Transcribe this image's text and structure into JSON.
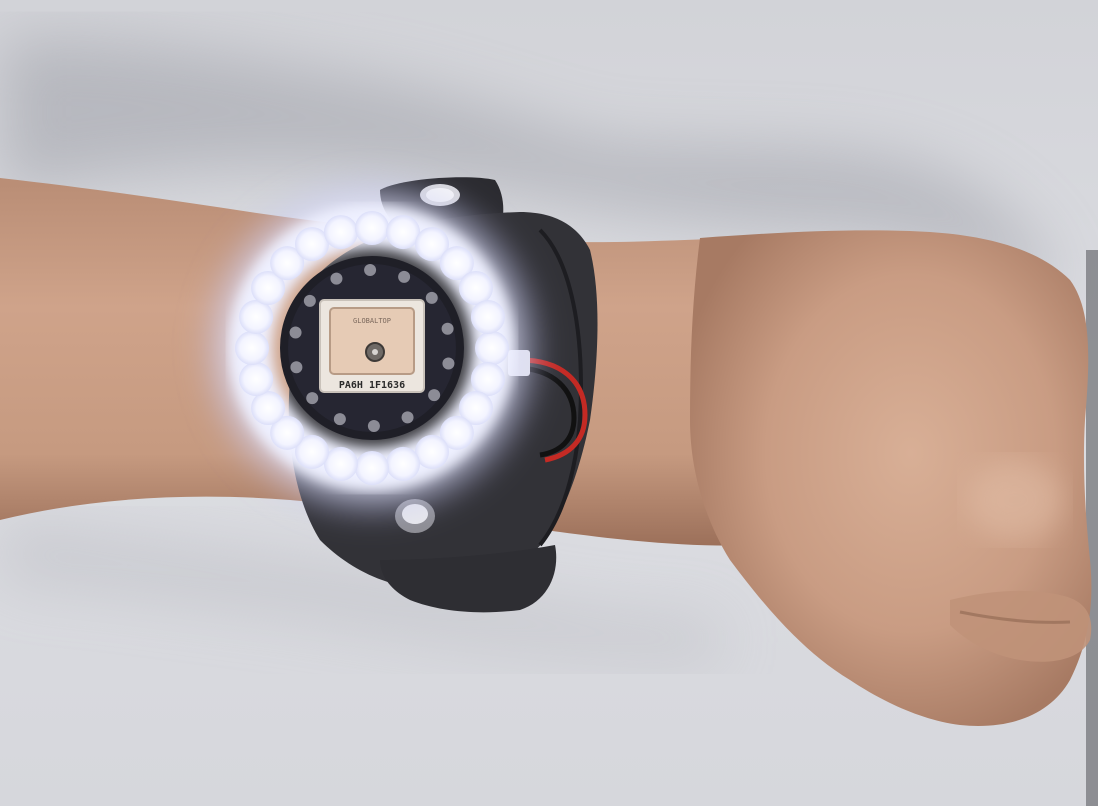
{
  "photo": {
    "chip_label": "PA6H 1F1636",
    "chip_sublabel": "GLOBALTOP",
    "colors": {
      "wall": "#d9dadf",
      "shadow": "#9a9ba3",
      "skin": "#c9a088",
      "skin_dark": "#a77a63",
      "strap": "#2a2a2e",
      "pcb": "#1d1d24",
      "led_glow": "#e8eaff",
      "led_core": "#ffffff",
      "antenna": "#e2c7b0",
      "wire_red": "#c42a24",
      "wire_black": "#111111"
    }
  }
}
